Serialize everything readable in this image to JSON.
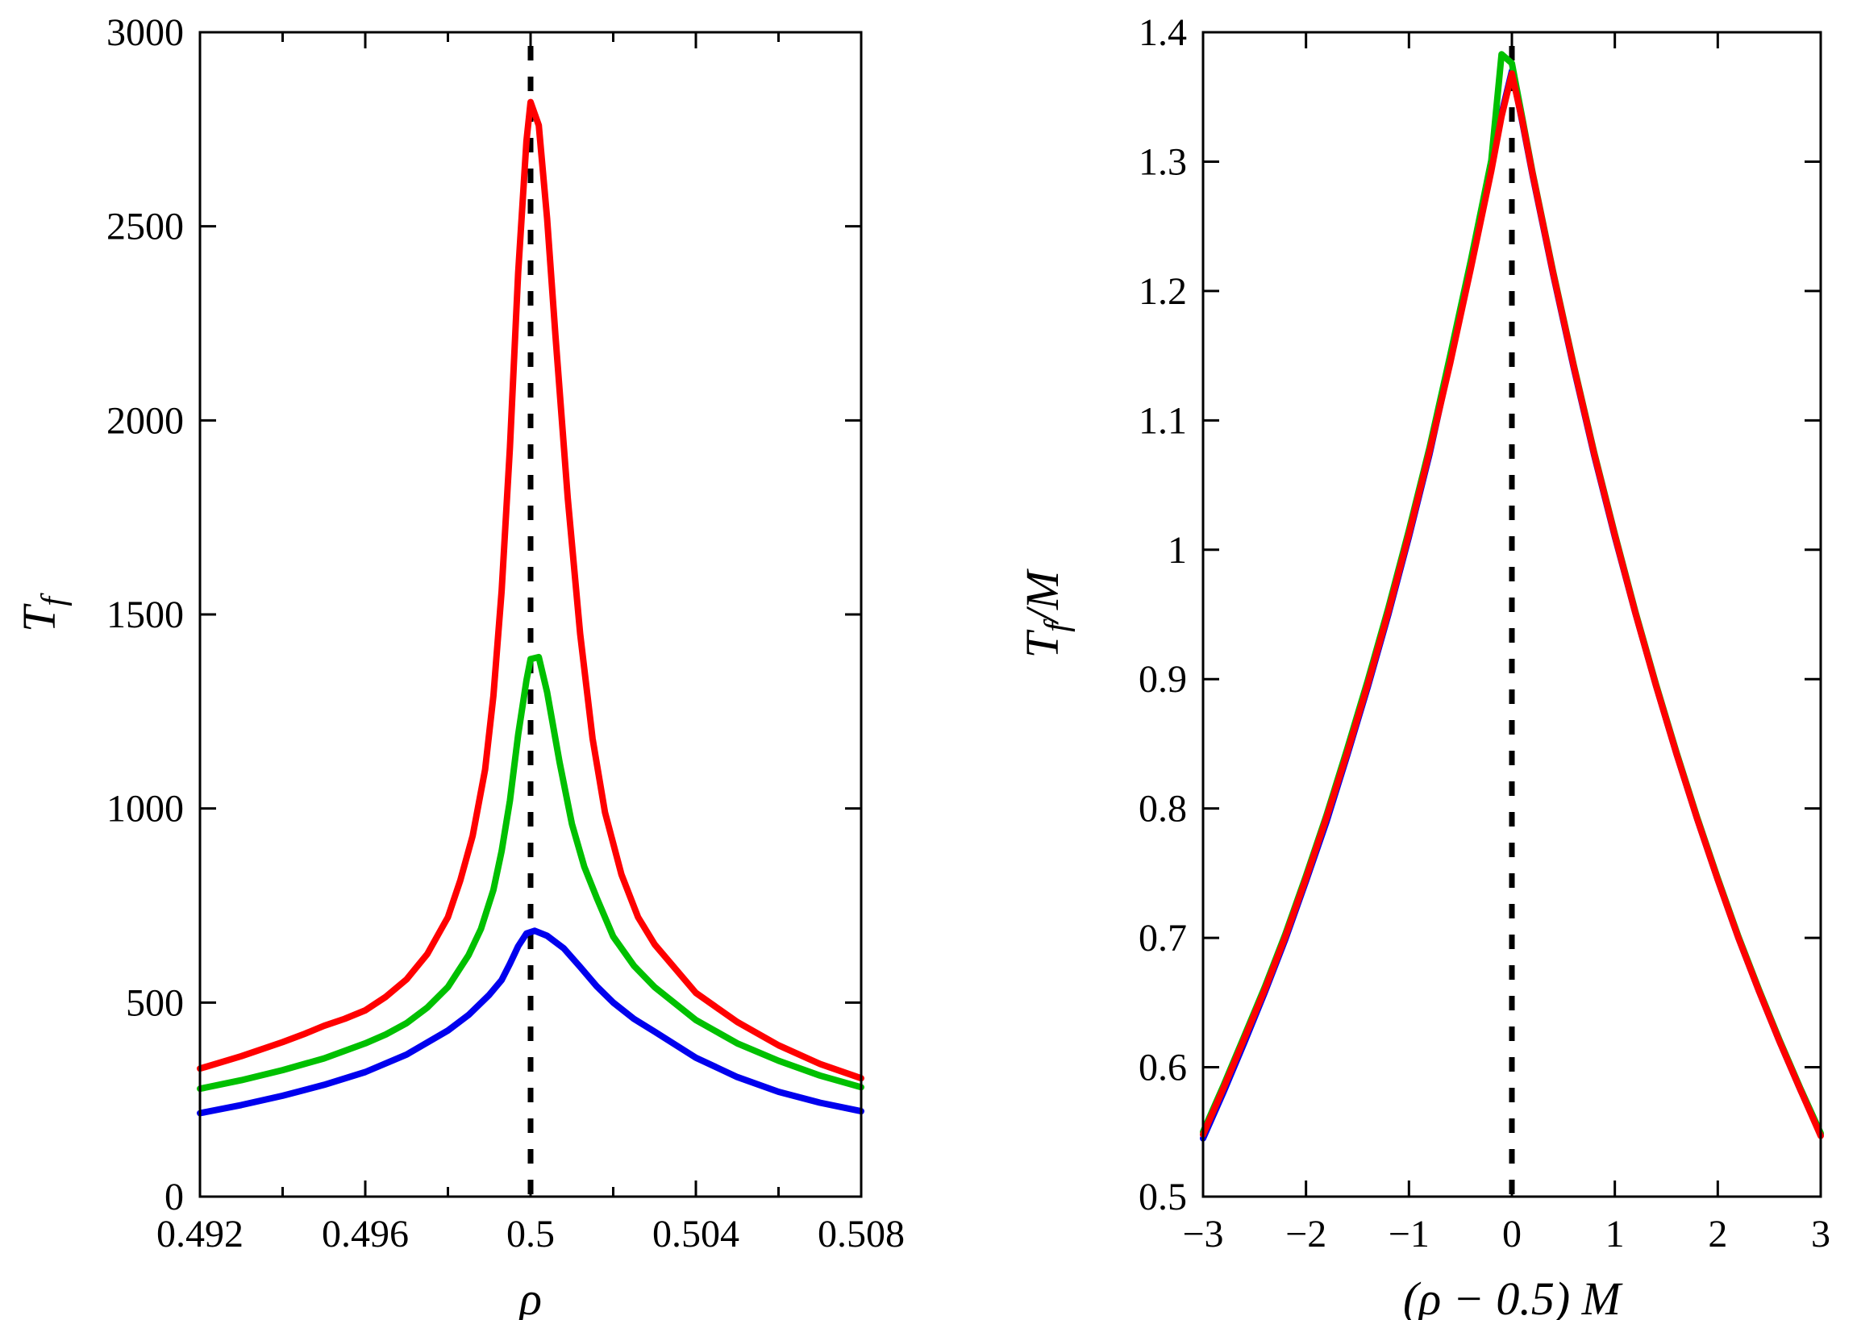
{
  "figure": {
    "background": "#ffffff",
    "axis_color": "#000000",
    "colors": {
      "blue": "#0000ee",
      "green": "#00c000",
      "red": "#ff0000",
      "dashed_line": "#000000"
    }
  },
  "chart_data": [
    {
      "id": "left",
      "type": "line",
      "title": "",
      "xlabel": "ρ",
      "ylabel": "T_f",
      "xlim": [
        0.492,
        0.508
      ],
      "ylim": [
        0,
        3000
      ],
      "grid": false,
      "legend": "none",
      "xticks": {
        "values": [
          0.492,
          0.496,
          0.5,
          0.504,
          0.508
        ],
        "labels": [
          "0.492",
          "0.496",
          "0.5",
          "0.504",
          "0.508"
        ]
      },
      "minor_xticks": [
        0.494,
        0.498,
        0.502,
        0.506
      ],
      "yticks": {
        "values": [
          0,
          500,
          1000,
          1500,
          2000,
          2500,
          3000
        ],
        "labels": [
          "0",
          "500",
          "1000",
          "1500",
          "2000",
          "2500",
          "3000"
        ]
      },
      "vline": {
        "x": 0.5,
        "style": "dashed",
        "color": "#000000"
      },
      "series": [
        {
          "name": "blue-curve",
          "color": "#0000ee",
          "x": [
            0.492,
            0.493,
            0.494,
            0.495,
            0.496,
            0.497,
            0.498,
            0.4985,
            0.499,
            0.4993,
            0.4995,
            0.4997,
            0.4999,
            0.5001,
            0.5004,
            0.5008,
            0.5012,
            0.5016,
            0.502,
            0.5025,
            0.503,
            0.504,
            0.505,
            0.506,
            0.507,
            0.508
          ],
          "y": [
            215,
            236,
            260,
            288,
            321,
            366,
            428,
            468,
            520,
            558,
            600,
            645,
            678,
            685,
            672,
            640,
            592,
            542,
            500,
            458,
            425,
            358,
            308,
            270,
            242,
            220
          ]
        },
        {
          "name": "green-curve",
          "color": "#00c000",
          "x": [
            0.492,
            0.493,
            0.494,
            0.495,
            0.496,
            0.4965,
            0.497,
            0.4975,
            0.498,
            0.4985,
            0.4988,
            0.4991,
            0.4993,
            0.4995,
            0.4997,
            0.4999,
            0.5,
            0.5002,
            0.5004,
            0.5007,
            0.501,
            0.5013,
            0.5016,
            0.502,
            0.5025,
            0.503,
            0.504,
            0.505,
            0.506,
            0.507,
            0.508
          ],
          "y": [
            278,
            300,
            326,
            356,
            395,
            418,
            447,
            487,
            540,
            622,
            690,
            790,
            890,
            1020,
            1190,
            1330,
            1385,
            1390,
            1300,
            1120,
            960,
            850,
            770,
            670,
            595,
            540,
            455,
            395,
            350,
            312,
            282
          ]
        },
        {
          "name": "red-curve",
          "color": "#ff0000",
          "x": [
            0.492,
            0.493,
            0.494,
            0.4945,
            0.495,
            0.4955,
            0.496,
            0.4965,
            0.497,
            0.4975,
            0.498,
            0.4983,
            0.4986,
            0.4989,
            0.4991,
            0.4993,
            0.4995,
            0.4997,
            0.4999,
            0.5,
            0.5002,
            0.5004,
            0.5006,
            0.5009,
            0.5012,
            0.5015,
            0.5018,
            0.5022,
            0.5026,
            0.503,
            0.504,
            0.505,
            0.506,
            0.507,
            0.508
          ],
          "y": [
            330,
            362,
            398,
            418,
            440,
            458,
            480,
            515,
            560,
            625,
            720,
            815,
            930,
            1100,
            1290,
            1560,
            1930,
            2380,
            2720,
            2820,
            2760,
            2520,
            2220,
            1800,
            1450,
            1180,
            990,
            830,
            720,
            650,
            525,
            450,
            390,
            342,
            305
          ]
        }
      ]
    },
    {
      "id": "right",
      "type": "line",
      "title": "",
      "xlabel": "(ρ − 0.5) M",
      "ylabel": "T_f/M",
      "xlim": [
        -3,
        3
      ],
      "ylim": [
        0.5,
        1.4
      ],
      "grid": false,
      "legend": "none",
      "xticks": {
        "values": [
          -3,
          -2,
          -1,
          0,
          1,
          2,
          3
        ],
        "labels": [
          "−3",
          "−2",
          "−1",
          "0",
          "1",
          "2",
          "3"
        ]
      },
      "minor_xticks": [],
      "yticks": {
        "values": [
          0.5,
          0.6,
          0.7,
          0.8,
          0.9,
          1,
          1.1,
          1.2,
          1.3,
          1.4
        ],
        "labels": [
          "0.5",
          "0.6",
          "0.7",
          "0.8",
          "0.9",
          "1",
          "1.1",
          "1.2",
          "1.3",
          "1.4"
        ]
      },
      "vline": {
        "x": 0,
        "style": "dashed",
        "color": "#000000"
      },
      "series": [
        {
          "name": "blue-curve",
          "color": "#0000ee",
          "x": [
            -3,
            -2.8,
            -2.6,
            -2.4,
            -2.2,
            -2,
            -1.8,
            -1.6,
            -1.4,
            -1.2,
            -1,
            -0.8,
            -0.6,
            -0.4,
            -0.2,
            -0.1,
            0,
            0.1,
            0.2,
            0.4,
            0.6,
            0.8,
            1,
            1.2,
            1.4,
            1.6,
            1.8,
            2,
            2.2,
            2.4,
            2.6,
            2.8,
            3
          ],
          "y": [
            0.545,
            0.581,
            0.619,
            0.658,
            0.699,
            0.744,
            0.79,
            0.841,
            0.894,
            0.95,
            1.01,
            1.074,
            1.146,
            1.219,
            1.296,
            1.337,
            1.37,
            1.331,
            1.29,
            1.213,
            1.141,
            1.073,
            1.01,
            0.951,
            0.895,
            0.842,
            0.792,
            0.745,
            0.7,
            0.659,
            0.62,
            0.583,
            0.548
          ]
        },
        {
          "name": "green-curve",
          "color": "#00c000",
          "x": [
            -3,
            -2.8,
            -2.6,
            -2.4,
            -2.2,
            -2,
            -1.8,
            -1.6,
            -1.4,
            -1.2,
            -1,
            -0.8,
            -0.6,
            -0.4,
            -0.2,
            -0.1,
            0,
            0.1,
            0.2,
            0.4,
            0.6,
            0.8,
            1,
            1.2,
            1.4,
            1.6,
            1.8,
            2,
            2.2,
            2.4,
            2.6,
            2.8,
            3
          ],
          "y": [
            0.55,
            0.586,
            0.624,
            0.662,
            0.703,
            0.748,
            0.795,
            0.846,
            0.899,
            0.955,
            1.015,
            1.079,
            1.15,
            1.223,
            1.301,
            1.383,
            1.376,
            1.334,
            1.292,
            1.215,
            1.143,
            1.075,
            1.012,
            0.952,
            0.896,
            0.843,
            0.793,
            0.746,
            0.701,
            0.66,
            0.621,
            0.584,
            0.549
          ]
        },
        {
          "name": "red-curve",
          "color": "#ff0000",
          "x": [
            -3,
            -2.8,
            -2.6,
            -2.4,
            -2.2,
            -2,
            -1.8,
            -1.6,
            -1.4,
            -1.2,
            -1,
            -0.8,
            -0.6,
            -0.4,
            -0.2,
            -0.1,
            0,
            0.1,
            0.2,
            0.4,
            0.6,
            0.8,
            1,
            1.2,
            1.4,
            1.6,
            1.8,
            2,
            2.2,
            2.4,
            2.6,
            2.8,
            3
          ],
          "y": [
            0.548,
            0.584,
            0.622,
            0.66,
            0.701,
            0.746,
            0.793,
            0.843,
            0.896,
            0.952,
            1.012,
            1.076,
            1.144,
            1.217,
            1.293,
            1.335,
            1.368,
            1.332,
            1.291,
            1.214,
            1.142,
            1.074,
            1.011,
            0.951,
            0.895,
            0.842,
            0.792,
            0.745,
            0.7,
            0.659,
            0.62,
            0.583,
            0.547
          ]
        }
      ]
    }
  ]
}
